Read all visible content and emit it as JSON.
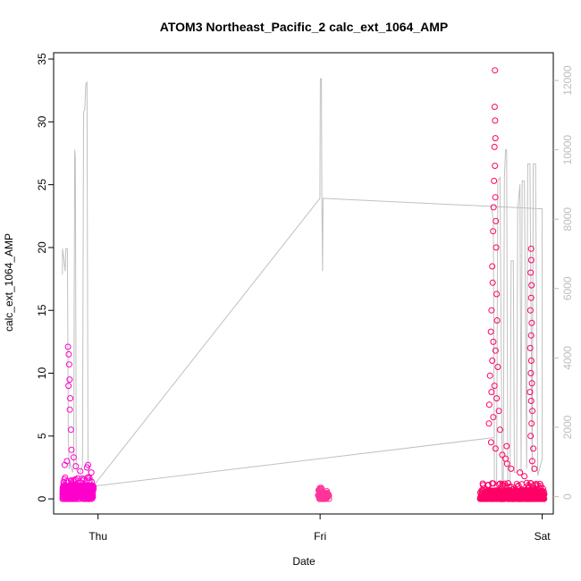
{
  "chart_data": {
    "type": "scatter",
    "title": "ATOM3 Northeast_Pacific_2 calc_ext_1064_AMP",
    "xlabel": "Date",
    "ylabel": "calc_ext_1064_AMP",
    "x_ticks": [
      "Thu",
      "Fri",
      "Sat"
    ],
    "x_tick_values": [
      1,
      2,
      3
    ],
    "xlim": [
      0.8,
      3.05
    ],
    "ylim": [
      -1.2,
      35.5
    ],
    "y_ticks": [
      0,
      5,
      10,
      15,
      20,
      25,
      30,
      35
    ],
    "y2lim": [
      -500,
      12800
    ],
    "y2_ticks": [
      0,
      2000,
      4000,
      6000,
      8000,
      10000,
      12000
    ],
    "grid": false,
    "colors": {
      "points_early": "#ff00cc",
      "points_late": "#ff0066",
      "line": "#c0c0c0",
      "right_axis": "#bdbdbd"
    },
    "series": [
      {
        "type": "scatter",
        "segments": [
          {
            "x_range": [
              0.84,
              0.98
            ],
            "median": 0.6,
            "spread": 0.5,
            "count": 420,
            "color": "#ff00cc",
            "spikes": [
              [
                0.865,
                12.1
              ],
              [
                0.868,
                11.5
              ],
              [
                0.87,
                10.7
              ],
              [
                0.872,
                9.5
              ],
              [
                0.867,
                9.0
              ],
              [
                0.875,
                8.0
              ],
              [
                0.873,
                7.1
              ],
              [
                0.878,
                5.5
              ],
              [
                0.88,
                3.9
              ],
              [
                0.86,
                3.0
              ],
              [
                0.89,
                3.3
              ],
              [
                0.9,
                2.6
              ],
              [
                0.92,
                2.2
              ],
              [
                0.95,
                2.5
              ],
              [
                0.955,
                2.7
              ],
              [
                0.97,
                2.1
              ],
              [
                0.85,
                2.7
              ]
            ]
          },
          {
            "x_range": [
              1.99,
              2.04
            ],
            "median": 0.2,
            "spread": 0.3,
            "count": 60,
            "color": "#ff3399",
            "spikes": [
              [
                2.0,
                0.6
              ],
              [
                2.01,
                0.55
              ]
            ]
          },
          {
            "x_range": [
              2.72,
              3.01
            ],
            "median": 0.3,
            "spread": 0.4,
            "count": 520,
            "color": "#ff0066",
            "spikes": [
              [
                2.787,
                34.1
              ],
              [
                2.786,
                31.2
              ],
              [
                2.788,
                30.1
              ],
              [
                2.789,
                28.7
              ],
              [
                2.785,
                28.0
              ],
              [
                2.787,
                26.5
              ],
              [
                2.783,
                25.3
              ],
              [
                2.789,
                24.0
              ],
              [
                2.781,
                23.2
              ],
              [
                2.791,
                22.1
              ],
              [
                2.779,
                21.3
              ],
              [
                2.793,
                20.0
              ],
              [
                2.775,
                18.5
              ],
              [
                2.777,
                17.2
              ],
              [
                2.795,
                16.3
              ],
              [
                2.772,
                15.0
              ],
              [
                2.797,
                14.2
              ],
              [
                2.769,
                13.3
              ],
              [
                2.78,
                12.5
              ],
              [
                2.79,
                11.8
              ],
              [
                2.775,
                11.0
              ],
              [
                2.8,
                10.5
              ],
              [
                2.765,
                9.8
              ],
              [
                2.785,
                9.0
              ],
              [
                2.772,
                8.5
              ],
              [
                2.795,
                8.0
              ],
              [
                2.762,
                7.5
              ],
              [
                2.805,
                7.0
              ],
              [
                2.78,
                6.5
              ],
              [
                2.76,
                6.0
              ],
              [
                2.81,
                5.5
              ],
              [
                2.77,
                4.5
              ],
              [
                2.79,
                4.0
              ],
              [
                2.82,
                3.5
              ],
              [
                2.835,
                3.2
              ],
              [
                2.842,
                2.8
              ],
              [
                2.84,
                4.2
              ],
              [
                2.86,
                2.4
              ],
              [
                2.95,
                19.9
              ],
              [
                2.951,
                19.0
              ],
              [
                2.948,
                18.0
              ],
              [
                2.952,
                17.0
              ],
              [
                2.95,
                16.0
              ],
              [
                2.947,
                15.0
              ],
              [
                2.953,
                14.0
              ],
              [
                2.95,
                13.0
              ],
              [
                2.946,
                12.0
              ],
              [
                2.951,
                11.0
              ],
              [
                2.949,
                10.0
              ],
              [
                2.954,
                9.2
              ],
              [
                2.945,
                8.5
              ],
              [
                2.95,
                7.8
              ],
              [
                2.956,
                7.0
              ],
              [
                2.952,
                6.0
              ],
              [
                2.948,
                5.0
              ],
              [
                2.96,
                4.0
              ],
              [
                2.955,
                3.0
              ],
              [
                2.965,
                2.4
              ],
              [
                2.92,
                1.8
              ],
              [
                2.9,
                2.1
              ]
            ]
          }
        ]
      },
      {
        "type": "line",
        "axis": "right",
        "color": "#c0c0c0",
        "points": [
          [
            0.84,
            6400
          ],
          [
            0.84,
            7150
          ],
          [
            0.845,
            6900
          ],
          [
            0.852,
            6500
          ],
          [
            0.855,
            7150
          ],
          [
            0.862,
            7150
          ],
          [
            0.866,
            1800
          ],
          [
            0.87,
            800
          ],
          [
            0.875,
            1000
          ],
          [
            0.88,
            800
          ],
          [
            0.885,
            700
          ],
          [
            0.89,
            900
          ],
          [
            0.895,
            10000
          ],
          [
            0.898,
            9800
          ],
          [
            0.902,
            800
          ],
          [
            0.91,
            700
          ],
          [
            0.92,
            700
          ],
          [
            0.93,
            900
          ],
          [
            0.935,
            11100
          ],
          [
            0.94,
            11150
          ],
          [
            0.945,
            11900
          ],
          [
            0.95,
            11950
          ],
          [
            0.955,
            800
          ],
          [
            0.96,
            500
          ],
          [
            0.965,
            450
          ],
          [
            0.97,
            450
          ],
          [
            0.975,
            400
          ],
          [
            0.978,
            300
          ],
          [
            2.78,
            1700
          ],
          [
            0.978,
            300
          ],
          [
            1.999,
            8600
          ],
          [
            2.001,
            12050
          ],
          [
            2.006,
            12050
          ],
          [
            2.008,
            8400
          ],
          [
            2.011,
            6500
          ],
          [
            2.013,
            8600
          ],
          [
            2.014,
            8600
          ],
          [
            3.0,
            8300
          ],
          [
            3.0,
            1100
          ],
          [
            2.98,
            600
          ],
          [
            2.97,
            9600
          ],
          [
            2.96,
            9600
          ],
          [
            2.955,
            700
          ],
          [
            2.945,
            9600
          ],
          [
            2.935,
            9600
          ],
          [
            2.93,
            800
          ],
          [
            2.92,
            9100
          ],
          [
            2.91,
            9100
          ],
          [
            2.905,
            700
          ],
          [
            2.9,
            9000
          ],
          [
            2.89,
            8300
          ],
          [
            2.885,
            700
          ],
          [
            2.875,
            700
          ],
          [
            2.87,
            6800
          ],
          [
            2.86,
            6800
          ],
          [
            2.855,
            300
          ],
          [
            2.845,
            200
          ],
          [
            2.84,
            10000
          ],
          [
            2.835,
            10000
          ],
          [
            2.83,
            9200
          ],
          [
            2.825,
            400
          ],
          [
            2.82,
            300
          ],
          [
            2.81,
            9200
          ],
          [
            2.8,
            9100
          ],
          [
            2.795,
            400
          ],
          [
            2.785,
            300
          ],
          [
            2.78,
            8000
          ],
          [
            2.77,
            8400
          ]
        ]
      }
    ]
  }
}
